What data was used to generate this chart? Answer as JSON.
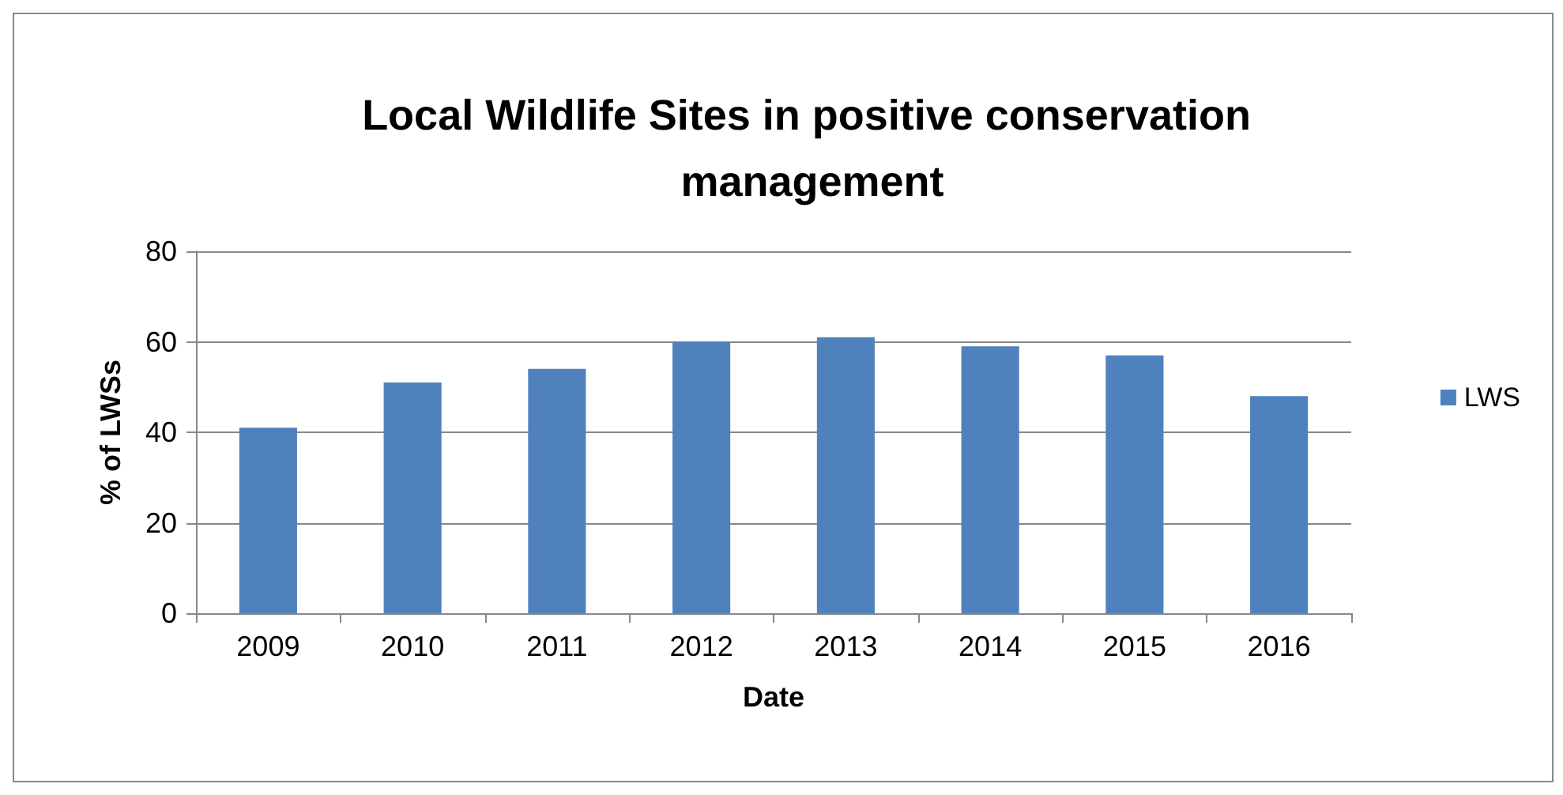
{
  "chart_data": {
    "type": "bar",
    "title": "Local Wildlife Sites in positive conservation management",
    "xlabel": "Date",
    "ylabel": "% of LWSs",
    "categories": [
      "2009",
      "2010",
      "2011",
      "2012",
      "2013",
      "2014",
      "2015",
      "2016"
    ],
    "series": [
      {
        "name": "LWS",
        "color": "#4f81bd",
        "values": [
          41,
          51,
          54,
          60,
          61,
          59,
          57,
          48
        ]
      }
    ],
    "ylim": [
      0,
      80
    ],
    "yticks": [
      0,
      20,
      40,
      60,
      80
    ],
    "grid": "y",
    "legend": "right"
  }
}
